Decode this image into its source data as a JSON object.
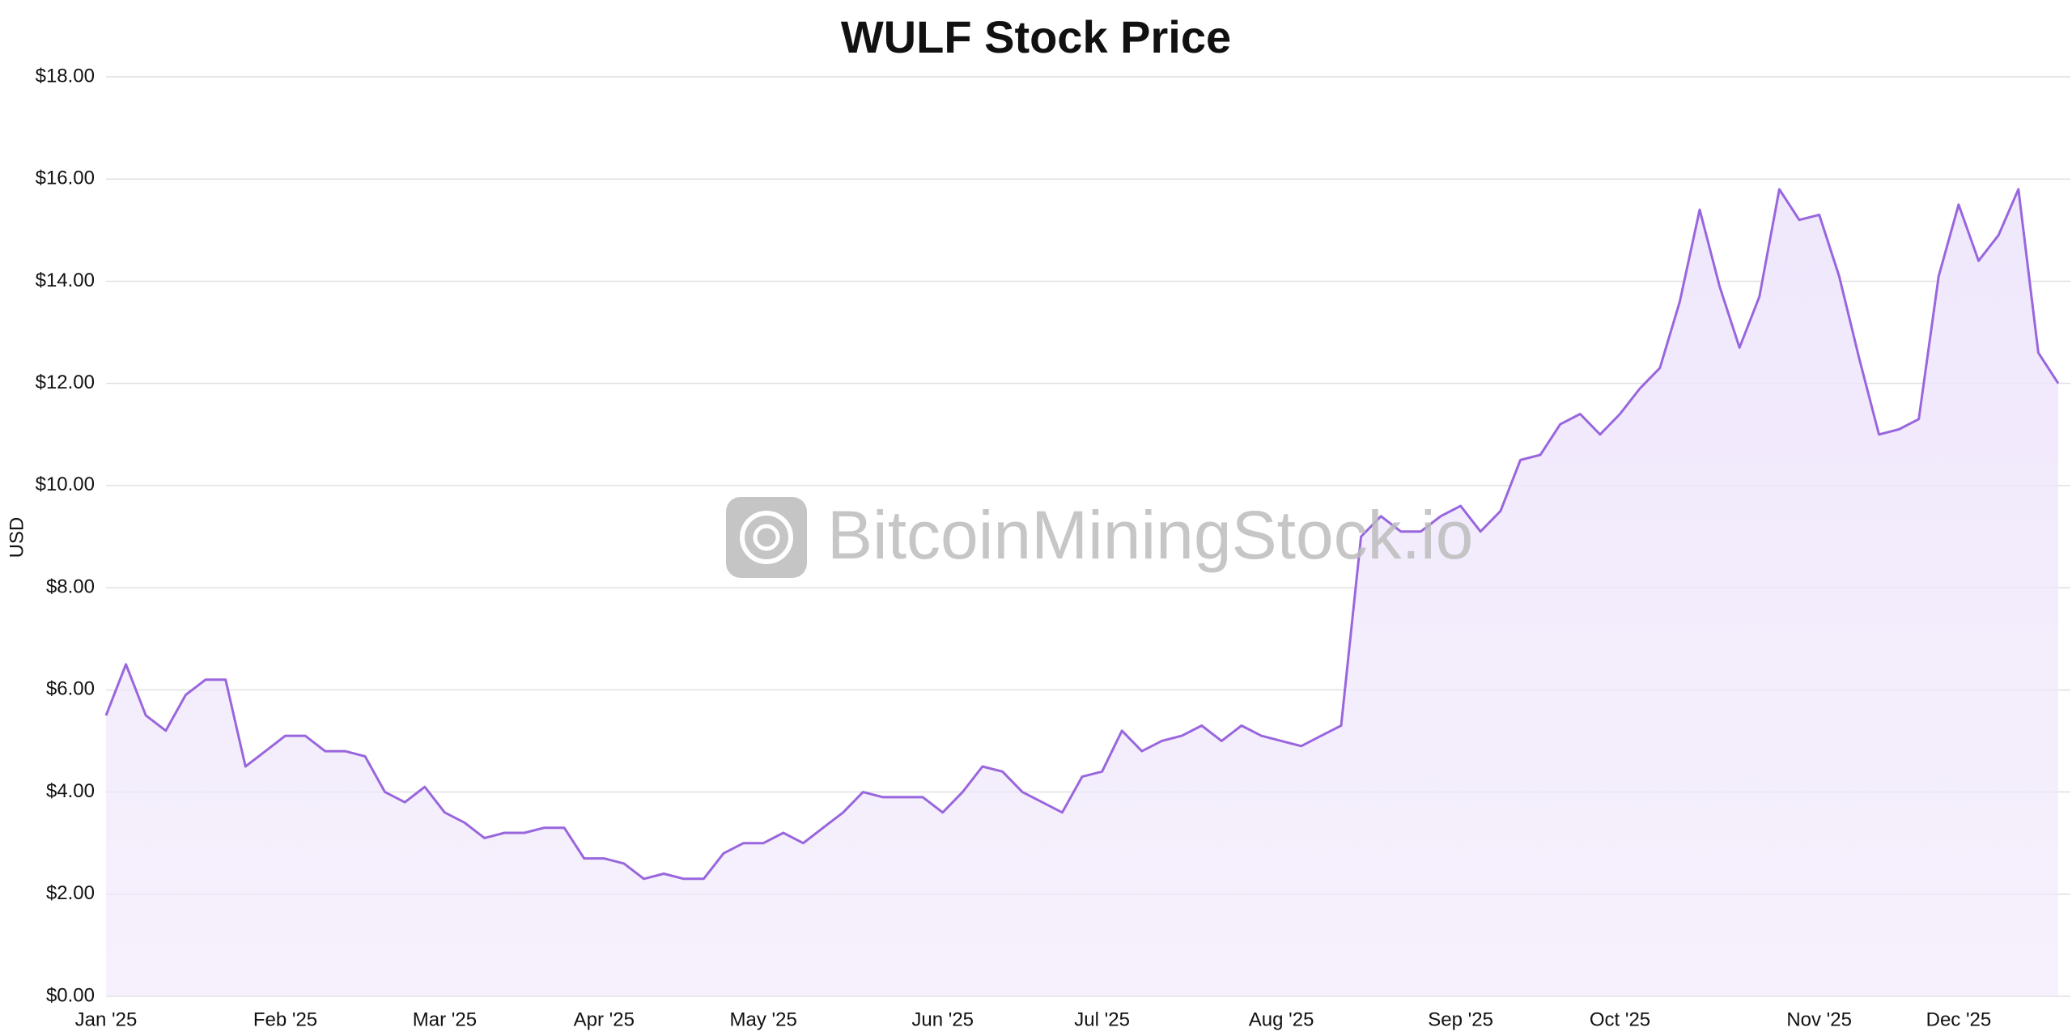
{
  "chart_data": {
    "type": "area",
    "title": "WULF Stock Price",
    "y_label": "USD",
    "watermark": "BitcoinMiningStock.io",
    "color": "#9966dd",
    "fill": "#efe6fb",
    "grid": true,
    "categories": [
      "Jan '25",
      null,
      null,
      null,
      null,
      null,
      null,
      null,
      null,
      "Feb '25",
      null,
      null,
      null,
      null,
      null,
      null,
      null,
      "Mar '25",
      null,
      null,
      null,
      null,
      null,
      null,
      null,
      "Apr '25",
      null,
      null,
      null,
      null,
      null,
      null,
      null,
      "May '25",
      null,
      null,
      null,
      null,
      null,
      null,
      null,
      null,
      "Jun '25",
      null,
      null,
      null,
      null,
      null,
      null,
      null,
      "Jul '25",
      null,
      null,
      null,
      null,
      null,
      null,
      null,
      null,
      "Aug '25",
      null,
      null,
      null,
      null,
      null,
      null,
      null,
      null,
      "Sep '25",
      null,
      null,
      null,
      null,
      null,
      null,
      null,
      "Oct '25",
      null,
      null,
      null,
      null,
      null,
      null,
      null,
      null,
      null,
      "Nov '25",
      null,
      null,
      null,
      null,
      null,
      null,
      "Dec '25",
      null,
      null,
      null,
      null,
      null
    ],
    "values": [
      5.5,
      6.5,
      5.5,
      5.2,
      5.9,
      6.2,
      6.2,
      4.5,
      4.8,
      5.1,
      5.1,
      4.8,
      4.8,
      4.7,
      4.0,
      3.8,
      4.1,
      3.6,
      3.4,
      3.1,
      3.2,
      3.2,
      3.3,
      3.3,
      2.7,
      2.7,
      2.6,
      2.3,
      2.4,
      2.3,
      2.3,
      2.8,
      3.0,
      3.0,
      3.2,
      3.0,
      3.3,
      3.6,
      4.0,
      3.9,
      3.9,
      3.9,
      3.6,
      4.0,
      4.5,
      4.4,
      4.0,
      3.8,
      3.6,
      4.3,
      4.4,
      5.2,
      4.8,
      5.0,
      5.1,
      5.3,
      5.0,
      5.3,
      5.1,
      5.0,
      4.9,
      5.1,
      5.3,
      9.0,
      9.4,
      9.1,
      9.1,
      9.4,
      9.6,
      9.1,
      9.5,
      10.5,
      10.6,
      11.2,
      11.4,
      11.0,
      11.4,
      11.9,
      12.3,
      13.6,
      15.4,
      13.9,
      12.7,
      13.7,
      15.8,
      15.2,
      15.3,
      14.1,
      12.5,
      11.0,
      11.1,
      11.3,
      14.1,
      15.5,
      14.4,
      14.9,
      15.8,
      12.6,
      12.0
    ],
    "ylim": [
      0,
      18
    ],
    "yticks": [
      {
        "value": 0,
        "label": "$0.00"
      },
      {
        "value": 2,
        "label": "$2.00"
      },
      {
        "value": 4,
        "label": "$4.00"
      },
      {
        "value": 6,
        "label": "$6.00"
      },
      {
        "value": 8,
        "label": "$8.00"
      },
      {
        "value": 10,
        "label": "$10.00"
      },
      {
        "value": 12,
        "label": "$12.00"
      },
      {
        "value": 14,
        "label": "$14.00"
      },
      {
        "value": 16,
        "label": "$16.00"
      },
      {
        "value": 18,
        "label": "$18.00"
      }
    ]
  }
}
